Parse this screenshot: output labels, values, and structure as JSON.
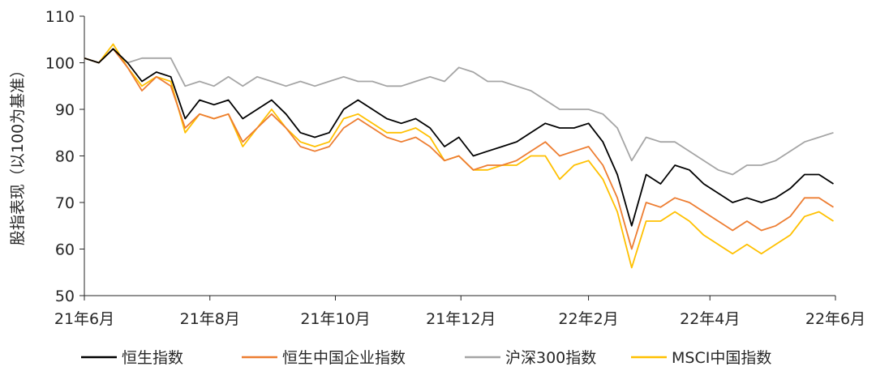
{
  "chart_data": {
    "type": "line",
    "title": "",
    "ylabel": "股指表现（以100为基准）",
    "xlabel": "",
    "ylim": [
      50,
      110
    ],
    "yticks": [
      50,
      60,
      70,
      80,
      90,
      100,
      110
    ],
    "x_range": [
      "2021-06-01",
      "2022-06-01"
    ],
    "x_tick_labels": [
      "21年6月",
      "21年8月",
      "21年10月",
      "21年12月",
      "22年2月",
      "22年4月",
      "22年6月"
    ],
    "x_tick_dates": [
      "2021-06-01",
      "2021-08-01",
      "2021-10-01",
      "2021-12-01",
      "2022-02-01",
      "2022-04-01",
      "2022-06-01"
    ],
    "grid": false,
    "legend_position": "bottom",
    "x": [
      "2021-06-01",
      "2021-06-08",
      "2021-06-15",
      "2021-06-22",
      "2021-06-29",
      "2021-07-06",
      "2021-07-13",
      "2021-07-20",
      "2021-07-27",
      "2021-08-03",
      "2021-08-10",
      "2021-08-17",
      "2021-08-24",
      "2021-08-31",
      "2021-09-07",
      "2021-09-14",
      "2021-09-21",
      "2021-09-28",
      "2021-10-05",
      "2021-10-12",
      "2021-10-19",
      "2021-10-26",
      "2021-11-02",
      "2021-11-09",
      "2021-11-16",
      "2021-11-23",
      "2021-11-30",
      "2021-12-07",
      "2021-12-14",
      "2021-12-21",
      "2021-12-28",
      "2022-01-04",
      "2022-01-11",
      "2022-01-18",
      "2022-01-25",
      "2022-02-01",
      "2022-02-08",
      "2022-02-15",
      "2022-02-22",
      "2022-03-01",
      "2022-03-08",
      "2022-03-15",
      "2022-03-22",
      "2022-03-29",
      "2022-04-05",
      "2022-04-12",
      "2022-04-19",
      "2022-04-26",
      "2022-05-03",
      "2022-05-10",
      "2022-05-17",
      "2022-05-24",
      "2022-05-31"
    ],
    "series": [
      {
        "name": "恒生指数",
        "color": "#000000",
        "values": [
          101,
          100,
          103,
          100,
          96,
          98,
          97,
          88,
          92,
          91,
          92,
          88,
          90,
          92,
          89,
          85,
          84,
          85,
          90,
          92,
          90,
          88,
          87,
          88,
          86,
          82,
          84,
          80,
          81,
          82,
          83,
          85,
          87,
          86,
          86,
          87,
          83,
          76,
          65,
          76,
          74,
          78,
          77,
          74,
          72,
          70,
          71,
          70,
          71,
          73,
          76,
          76,
          74
        ]
      },
      {
        "name": "恒生中国企业指数",
        "color": "#ED7D31",
        "values": [
          101,
          100,
          103,
          99,
          94,
          97,
          95,
          86,
          89,
          88,
          89,
          83,
          86,
          89,
          86,
          82,
          81,
          82,
          86,
          88,
          86,
          84,
          83,
          84,
          82,
          79,
          80,
          77,
          78,
          78,
          79,
          81,
          83,
          80,
          81,
          82,
          78,
          71,
          60,
          70,
          69,
          71,
          70,
          68,
          66,
          64,
          66,
          64,
          65,
          67,
          71,
          71,
          69
        ]
      },
      {
        "name": "沪深300指数",
        "color": "#A5A5A5",
        "values": [
          101,
          100,
          103,
          100,
          101,
          101,
          101,
          95,
          96,
          95,
          97,
          95,
          97,
          96,
          95,
          96,
          95,
          96,
          97,
          96,
          96,
          95,
          95,
          96,
          97,
          96,
          99,
          98,
          96,
          96,
          95,
          94,
          92,
          90,
          90,
          90,
          89,
          86,
          79,
          84,
          83,
          83,
          81,
          79,
          77,
          76,
          78,
          78,
          79,
          81,
          83,
          84,
          85
        ]
      },
      {
        "name": "MSCI中国指数",
        "color": "#FFC000",
        "values": [
          101,
          100,
          104,
          99,
          95,
          97,
          96,
          85,
          89,
          88,
          89,
          82,
          86,
          90,
          86,
          83,
          82,
          83,
          88,
          89,
          87,
          85,
          85,
          86,
          84,
          79,
          80,
          77,
          77,
          78,
          78,
          80,
          80,
          75,
          78,
          79,
          75,
          68,
          56,
          66,
          66,
          68,
          66,
          63,
          61,
          59,
          61,
          59,
          61,
          63,
          67,
          68,
          66
        ]
      }
    ]
  }
}
